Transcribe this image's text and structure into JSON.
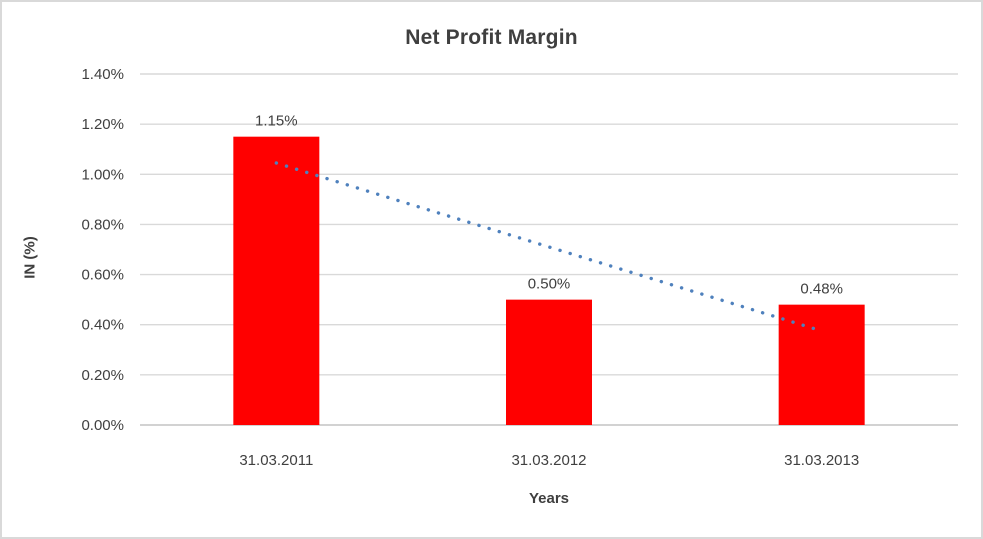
{
  "chart_data": {
    "type": "bar",
    "title": "Net Profit Margin",
    "xlabel": "Years",
    "ylabel": "IN (%)",
    "categories": [
      "31.03.2011",
      "31.03.2012",
      "31.03.2013"
    ],
    "values": [
      1.15,
      0.5,
      0.48
    ],
    "data_labels": [
      "1.15%",
      "0.50%",
      "0.48%"
    ],
    "y_tick_labels": [
      "0.00%",
      "0.20%",
      "0.40%",
      "0.60%",
      "0.80%",
      "1.00%",
      "1.20%",
      "1.40%"
    ],
    "ylim": [
      0,
      1.4
    ],
    "grid": "horizontal",
    "legend": "none",
    "colors": {
      "bar": "#ff0000",
      "trendline": "#4f81bd",
      "gridline": "#d9d9d9",
      "baseline": "#c3c3c3",
      "text": "#404040",
      "frame_border": "#d9d9d9"
    },
    "trendline": {
      "type": "linear",
      "style": "dotted"
    }
  }
}
